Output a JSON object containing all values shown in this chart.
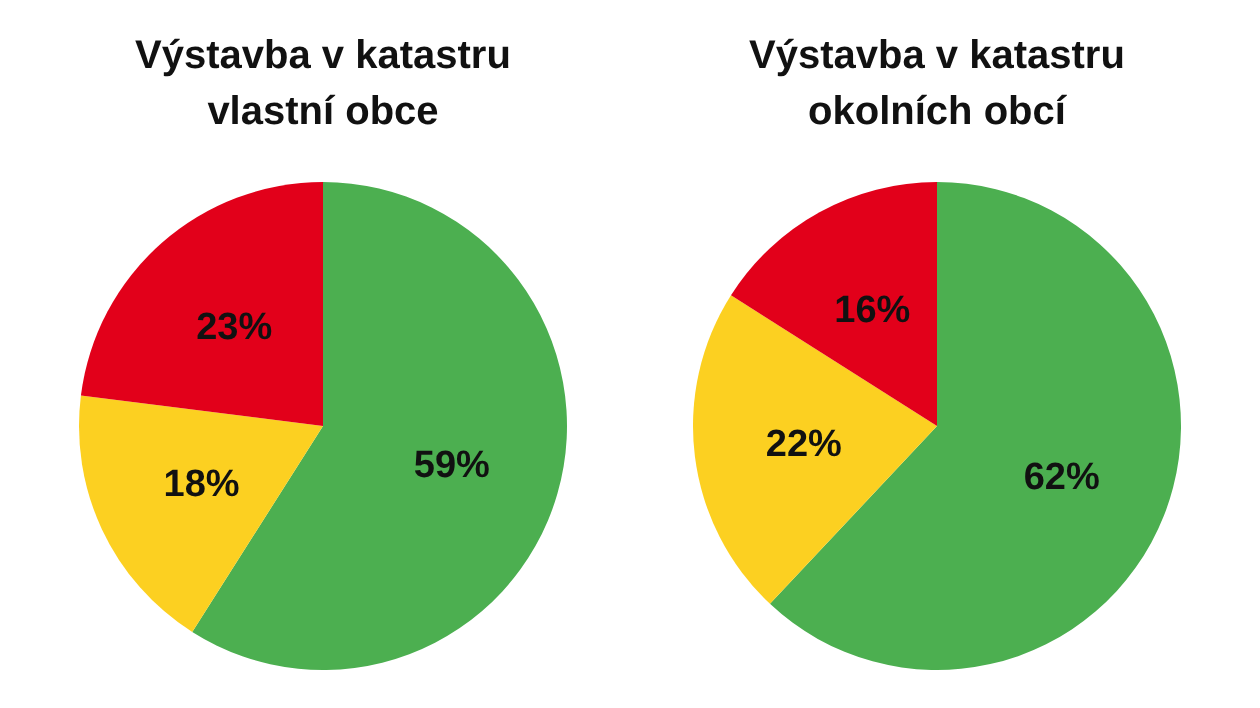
{
  "chart_data": [
    {
      "type": "pie",
      "title": "Výstavba v katastru\nvlastní obce",
      "categories": [
        null,
        null,
        null
      ],
      "values": [
        59,
        18,
        23
      ],
      "colors": [
        "#4caf50",
        "#fcd021",
        "#e2001a"
      ],
      "value_labels": [
        "59%",
        "18%",
        "23%"
      ]
    },
    {
      "type": "pie",
      "title": "Výstavba v katastru\nokolních obcí",
      "categories": [
        null,
        null,
        null
      ],
      "values": [
        62,
        22,
        16
      ],
      "colors": [
        "#4caf50",
        "#fcd021",
        "#e2001a"
      ],
      "value_labels": [
        "62%",
        "22%",
        "16%"
      ]
    }
  ]
}
